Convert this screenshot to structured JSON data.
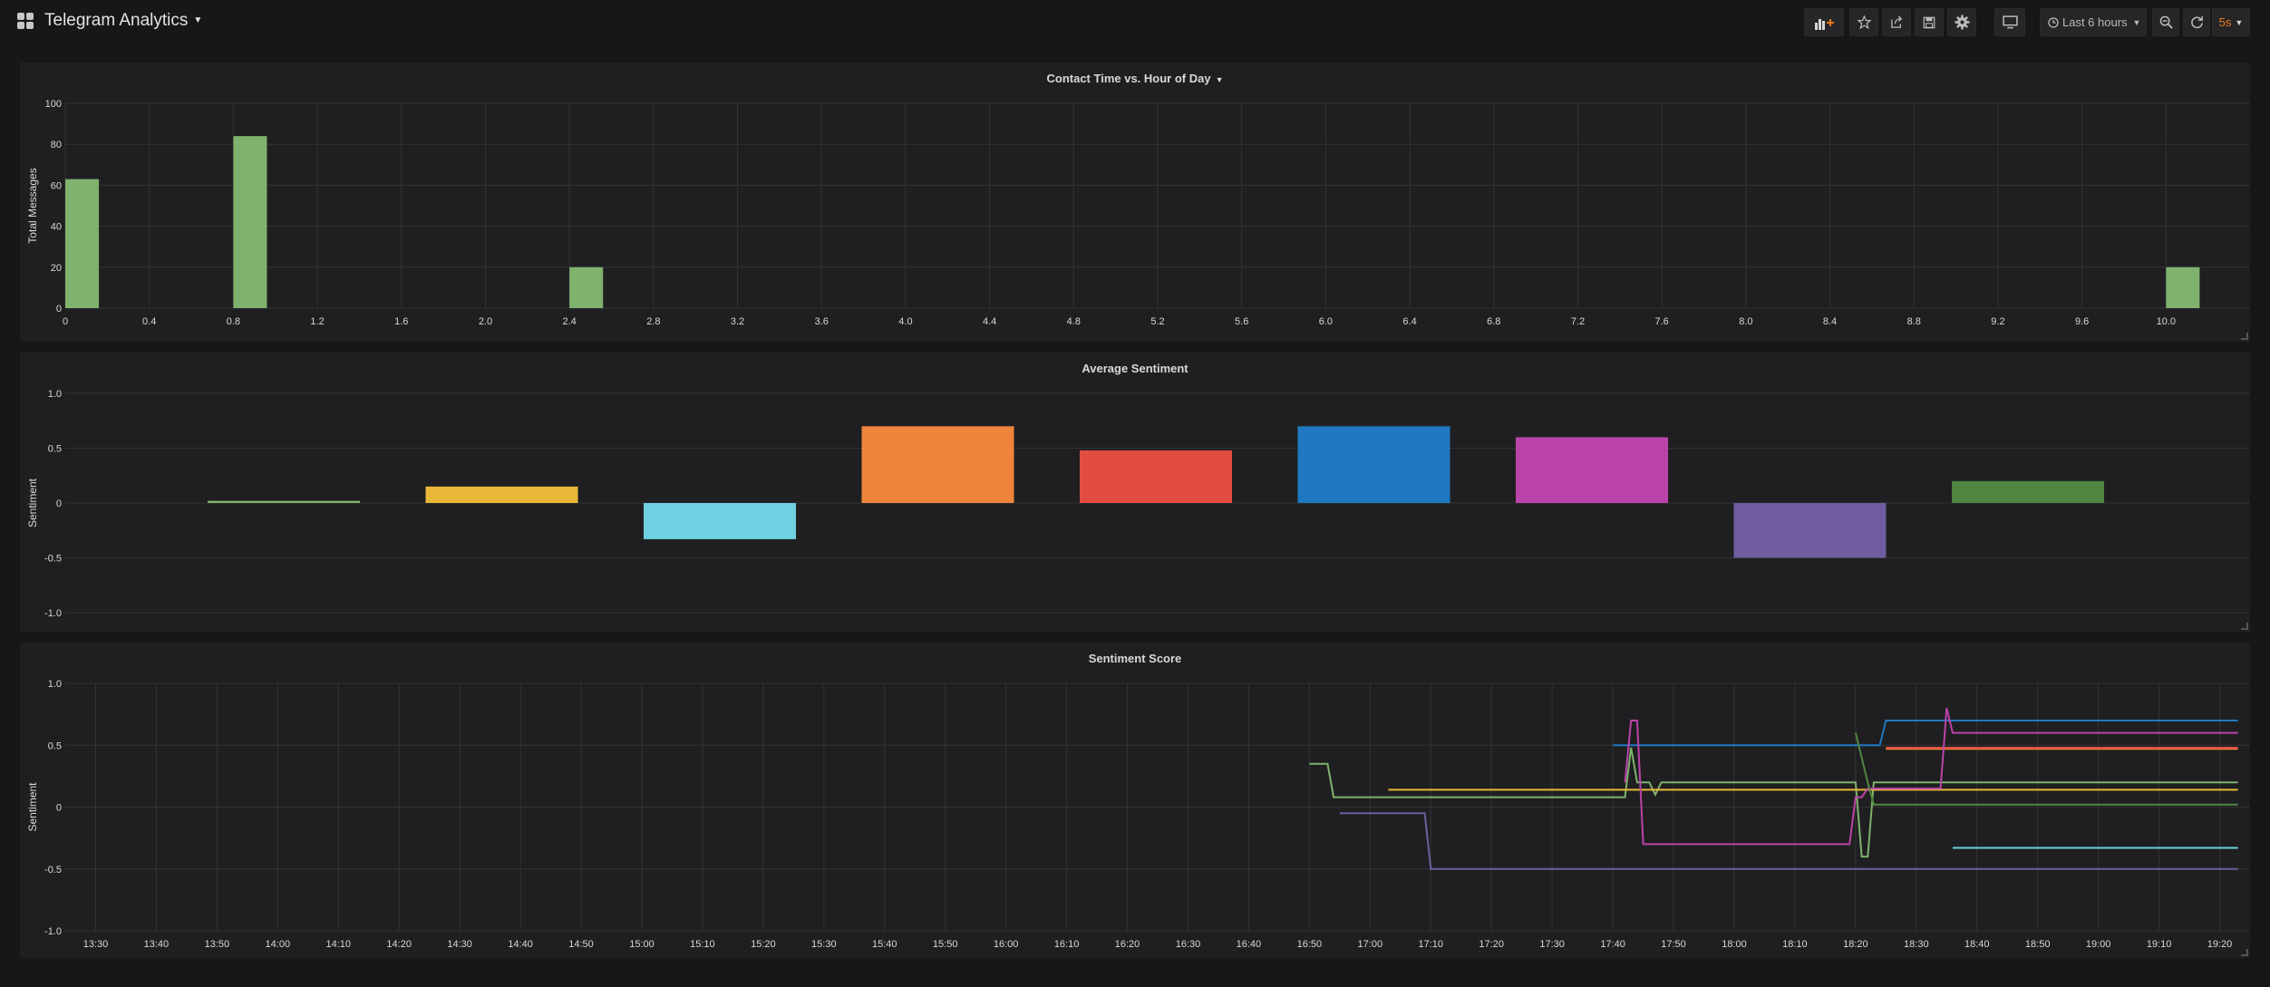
{
  "app": {
    "title": "Telegram Analytics"
  },
  "toolbar": {
    "add_panel_icon": "bar-chart-plus-icon",
    "star_icon": "star-icon",
    "share_icon": "share-icon",
    "save_icon": "save-icon",
    "settings_icon": "gear-icon",
    "tv_icon": "monitor-icon",
    "time_range_label": "Last 6 hours",
    "refresh_interval": "5s"
  },
  "colors": {
    "bg": "#161719",
    "panel": "#1f1f21",
    "grid": "#333335",
    "accent": "#eb7b18"
  },
  "panels": [
    {
      "title": "Contact Time vs. Hour of Day"
    },
    {
      "title": "Average Sentiment"
    },
    {
      "title": "Sentiment Score"
    }
  ],
  "chart_data": [
    {
      "type": "bar",
      "title": "Contact Time vs. Hour of Day",
      "ylabel": "Total Messages",
      "xlim": [
        0,
        10.4
      ],
      "ylim": [
        0,
        100
      ],
      "yticks": [
        "0",
        "20",
        "40",
        "60",
        "80",
        "100"
      ],
      "xticks": [
        "0",
        "0.4",
        "0.8",
        "1.2",
        "1.6",
        "2.0",
        "2.4",
        "2.8",
        "3.2",
        "3.6",
        "4.0",
        "4.4",
        "4.8",
        "5.2",
        "5.6",
        "6.0",
        "6.4",
        "6.8",
        "7.2",
        "7.6",
        "8.0",
        "8.4",
        "8.8",
        "9.2",
        "9.6",
        "10.0"
      ],
      "bar_width": 0.16,
      "x": [
        0,
        0.8,
        2.4,
        10.0
      ],
      "values": [
        63,
        84,
        20,
        20
      ],
      "color": "#7eb26d",
      "grid": true
    },
    {
      "type": "bar",
      "title": "Average Sentiment",
      "ylabel": "Sentiment",
      "ylim": [
        -1,
        1
      ],
      "yticks": [
        "1.0",
        "0.5",
        "0",
        "-0.5",
        "-1.0"
      ],
      "values": [
        0.02,
        0.15,
        -0.33,
        0.7,
        0.48,
        0.7,
        0.6,
        -0.5,
        0.2
      ],
      "colors": [
        "#7eb26d",
        "#eab839",
        "#6ed0e0",
        "#ef843c",
        "#e24d42",
        "#1f78c1",
        "#ba43a9",
        "#705da0",
        "#508642"
      ],
      "grid": true
    },
    {
      "type": "line",
      "title": "Sentiment Score",
      "ylabel": "Sentiment",
      "ylim": [
        -1,
        1
      ],
      "yticks": [
        "1.0",
        "0.5",
        "0",
        "-0.5",
        "-1.0"
      ],
      "xlim": [
        "13:25",
        "19:25"
      ],
      "xticks": [
        "13:30",
        "13:40",
        "13:50",
        "14:00",
        "14:10",
        "14:20",
        "14:30",
        "14:40",
        "14:50",
        "15:00",
        "15:10",
        "15:20",
        "15:30",
        "15:40",
        "15:50",
        "16:00",
        "16:10",
        "16:20",
        "16:30",
        "16:40",
        "16:50",
        "17:00",
        "17:10",
        "17:20",
        "17:30",
        "17:40",
        "17:50",
        "18:00",
        "18:10",
        "18:20",
        "18:30",
        "18:40",
        "18:50",
        "19:00",
        "19:10",
        "19:20"
      ],
      "series": [
        {
          "color": "#7eb26d",
          "points": [
            [
              "16:50",
              0.35
            ],
            [
              "16:53",
              0.35
            ],
            [
              "16:54",
              0.08
            ],
            [
              "17:42",
              0.08
            ],
            [
              "17:43",
              0.48
            ],
            [
              "17:44",
              0.2
            ],
            [
              "17:46",
              0.2
            ],
            [
              "17:47",
              0.1
            ],
            [
              "17:48",
              0.2
            ],
            [
              "18:20",
              0.2
            ],
            [
              "18:21",
              -0.4
            ],
            [
              "18:22",
              -0.4
            ],
            [
              "18:23",
              0.2
            ],
            [
              "19:23",
              0.2
            ]
          ]
        },
        {
          "color": "#eab839",
          "points": [
            [
              "17:03",
              0.14
            ],
            [
              "17:41",
              0.14
            ],
            [
              "17:43",
              0.14
            ],
            [
              "19:23",
              0.14
            ]
          ]
        },
        {
          "color": "#6ed0e0",
          "points": [
            [
              "18:36",
              -0.33
            ],
            [
              "19:23",
              -0.33
            ]
          ]
        },
        {
          "color": "#ef843c",
          "points": [
            [
              "18:25",
              0.47
            ],
            [
              "19:23",
              0.47
            ]
          ]
        },
        {
          "color": "#e24d42",
          "points": [
            [
              "18:25",
              0.48
            ],
            [
              "19:23",
              0.48
            ]
          ]
        },
        {
          "color": "#1f78c1",
          "points": [
            [
              "17:40",
              0.5
            ],
            [
              "18:24",
              0.5
            ],
            [
              "18:25",
              0.7
            ],
            [
              "19:23",
              0.7
            ]
          ]
        },
        {
          "color": "#ba43a9",
          "points": [
            [
              "17:42",
              0.2
            ],
            [
              "17:43",
              0.7
            ],
            [
              "17:44",
              0.7
            ],
            [
              "17:45",
              -0.3
            ],
            [
              "18:19",
              -0.3
            ],
            [
              "18:20",
              0.08
            ],
            [
              "18:21",
              0.08
            ],
            [
              "18:22",
              0.15
            ],
            [
              "18:34",
              0.15
            ],
            [
              "18:35",
              0.8
            ],
            [
              "18:36",
              0.6
            ],
            [
              "19:23",
              0.6
            ]
          ]
        },
        {
          "color": "#705da0",
          "points": [
            [
              "16:55",
              -0.05
            ],
            [
              "17:09",
              -0.05
            ],
            [
              "17:10",
              -0.5
            ],
            [
              "19:23",
              -0.5
            ]
          ]
        },
        {
          "color": "#508642",
          "points": [
            [
              "18:20",
              0.6
            ],
            [
              "18:22",
              0.2
            ],
            [
              "18:23",
              0.02
            ],
            [
              "19:23",
              0.02
            ]
          ]
        }
      ],
      "grid": true
    }
  ]
}
